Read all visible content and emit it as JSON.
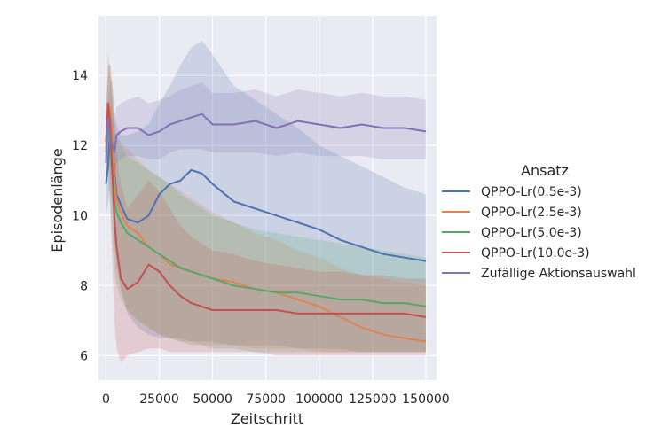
{
  "chart_data": {
    "type": "line",
    "xlabel": "Zeitschritt",
    "ylabel": "Episodenlänge",
    "xlim": [
      -3500,
      155000
    ],
    "ylim": [
      5.3,
      15.7
    ],
    "xticks": [
      0,
      25000,
      50000,
      75000,
      100000,
      125000,
      150000
    ],
    "xtick_labels": [
      "0",
      "25000",
      "50000",
      "75000",
      "100000",
      "125000",
      "150000"
    ],
    "yticks": [
      6,
      8,
      10,
      12,
      14
    ],
    "ytick_labels": [
      "6",
      "8",
      "10",
      "12",
      "14"
    ],
    "grid": true,
    "legend": {
      "title": "Ansatz",
      "placement": "right outside"
    },
    "x": [
      0,
      1000,
      2000,
      3000,
      4000,
      5000,
      7000,
      10000,
      15000,
      20000,
      25000,
      30000,
      35000,
      40000,
      45000,
      50000,
      60000,
      70000,
      80000,
      90000,
      100000,
      110000,
      120000,
      130000,
      140000,
      150000
    ],
    "series": [
      {
        "name": "QPPO-Lr(0.5e-3)",
        "color": "#4c72b0",
        "values": [
          10.9,
          11.4,
          12.6,
          12.2,
          11.2,
          10.6,
          10.3,
          9.9,
          9.8,
          10.0,
          10.6,
          10.9,
          11.0,
          11.3,
          11.2,
          10.9,
          10.4,
          10.2,
          10.0,
          9.8,
          9.6,
          9.3,
          9.1,
          8.9,
          8.8,
          8.7
        ],
        "lower": [
          10.0,
          10.3,
          10.8,
          10.2,
          9.3,
          8.6,
          7.9,
          7.2,
          6.8,
          6.6,
          6.5,
          6.5,
          6.5,
          6.4,
          6.4,
          6.4,
          6.3,
          6.3,
          6.3,
          6.2,
          6.2,
          6.2,
          6.1,
          6.1,
          6.1,
          6.1
        ],
        "upper": [
          11.8,
          12.4,
          13.9,
          13.8,
          13.0,
          12.6,
          12.3,
          12.3,
          12.4,
          12.6,
          13.2,
          13.7,
          14.3,
          14.8,
          15.0,
          14.6,
          13.7,
          13.3,
          12.9,
          12.5,
          12.0,
          11.7,
          11.4,
          11.1,
          10.8,
          10.6
        ]
      },
      {
        "name": "QPPO-Lr(2.5e-3)",
        "color": "#dd8452",
        "values": [
          11.9,
          12.7,
          13.1,
          12.2,
          11.0,
          10.4,
          10.1,
          9.7,
          9.5,
          9.1,
          8.9,
          8.6,
          8.5,
          8.4,
          8.3,
          8.2,
          8.1,
          7.9,
          7.8,
          7.6,
          7.4,
          7.1,
          6.8,
          6.6,
          6.5,
          6.4
        ],
        "lower": [
          11.0,
          11.3,
          11.3,
          10.3,
          9.2,
          8.5,
          7.9,
          7.3,
          7.0,
          6.8,
          6.6,
          6.5,
          6.4,
          6.4,
          6.3,
          6.3,
          6.3,
          6.2,
          6.2,
          6.2,
          6.1,
          6.1,
          6.1,
          6.1,
          6.1,
          6.1
        ],
        "upper": [
          12.8,
          14.0,
          14.4,
          13.8,
          12.8,
          12.3,
          12.1,
          11.9,
          11.6,
          11.3,
          11.1,
          10.9,
          10.7,
          10.5,
          10.3,
          10.1,
          9.8,
          9.5,
          9.3,
          9.0,
          8.8,
          8.5,
          8.3,
          8.2,
          8.1,
          8.0
        ]
      },
      {
        "name": "QPPO-Lr(5.0e-3)",
        "color": "#55a868",
        "values": [
          11.8,
          12.6,
          12.0,
          11.2,
          10.4,
          10.1,
          9.8,
          9.5,
          9.3,
          9.1,
          8.9,
          8.7,
          8.5,
          8.4,
          8.3,
          8.2,
          8.0,
          7.9,
          7.8,
          7.8,
          7.7,
          7.6,
          7.6,
          7.5,
          7.5,
          7.4
        ],
        "lower": [
          11.0,
          11.0,
          10.1,
          9.2,
          8.5,
          8.0,
          7.6,
          7.3,
          7.0,
          6.8,
          6.6,
          6.5,
          6.4,
          6.3,
          6.3,
          6.2,
          6.2,
          6.1,
          6.1,
          6.1,
          6.1,
          6.1,
          6.1,
          6.1,
          6.1,
          6.1
        ],
        "upper": [
          12.6,
          14.8,
          13.9,
          13.2,
          12.4,
          12.2,
          12.0,
          11.7,
          11.5,
          11.3,
          11.1,
          10.9,
          10.6,
          10.4,
          10.2,
          10.0,
          9.8,
          9.6,
          9.5,
          9.4,
          9.3,
          9.2,
          9.1,
          9.0,
          8.9,
          8.8
        ]
      },
      {
        "name": "QPPO-Lr(10.0e-3)",
        "color": "#c44e52",
        "values": [
          12.1,
          13.2,
          12.6,
          11.2,
          9.9,
          9.1,
          8.2,
          7.9,
          8.1,
          8.6,
          8.4,
          8.0,
          7.7,
          7.5,
          7.4,
          7.3,
          7.3,
          7.3,
          7.3,
          7.2,
          7.2,
          7.2,
          7.2,
          7.2,
          7.2,
          7.1
        ],
        "lower": [
          11.4,
          11.8,
          10.5,
          8.6,
          7.0,
          6.2,
          5.8,
          6.0,
          6.1,
          6.2,
          6.2,
          6.1,
          6.1,
          6.1,
          6.1,
          6.1,
          6.1,
          6.1,
          6.0,
          6.0,
          6.0,
          6.0,
          6.0,
          6.0,
          6.0,
          6.0
        ],
        "upper": [
          12.8,
          14.3,
          14.3,
          13.4,
          12.5,
          11.8,
          10.9,
          10.2,
          10.6,
          11.0,
          10.7,
          10.2,
          9.7,
          9.4,
          9.2,
          9.0,
          8.9,
          8.7,
          8.6,
          8.5,
          8.4,
          8.4,
          8.3,
          8.3,
          8.2,
          8.2
        ]
      },
      {
        "name": "Zufällige Aktionsauswahl",
        "color": "#8172b3",
        "values": [
          11.5,
          12.8,
          12.2,
          12.0,
          11.8,
          12.3,
          12.4,
          12.5,
          12.5,
          12.3,
          12.4,
          12.6,
          12.7,
          12.8,
          12.9,
          12.6,
          12.6,
          12.7,
          12.5,
          12.7,
          12.6,
          12.5,
          12.6,
          12.5,
          12.5,
          12.4
        ],
        "lower": [
          11.0,
          11.9,
          11.4,
          11.3,
          11.1,
          11.5,
          11.6,
          11.7,
          11.7,
          11.6,
          11.6,
          11.8,
          11.9,
          11.9,
          11.9,
          11.8,
          11.8,
          11.8,
          11.7,
          11.8,
          11.7,
          11.7,
          11.7,
          11.6,
          11.6,
          11.6
        ],
        "upper": [
          12.0,
          13.7,
          13.0,
          12.8,
          12.6,
          13.1,
          13.2,
          13.3,
          13.4,
          13.2,
          13.3,
          13.4,
          13.6,
          13.7,
          13.8,
          13.5,
          13.5,
          13.6,
          13.4,
          13.6,
          13.5,
          13.4,
          13.5,
          13.4,
          13.4,
          13.3
        ]
      }
    ]
  }
}
